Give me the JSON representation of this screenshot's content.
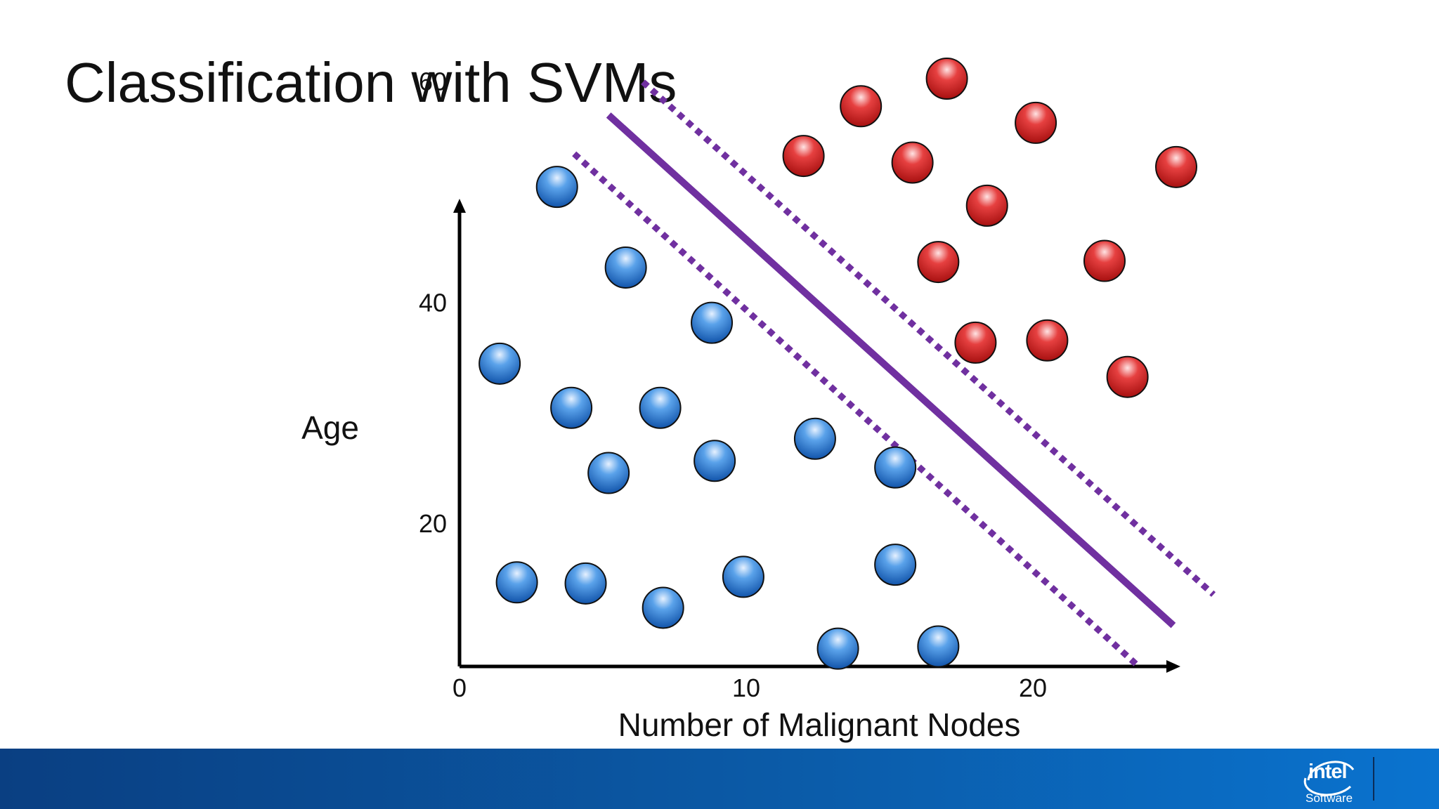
{
  "slide": {
    "title": "Classification with SVMs"
  },
  "chart_data": {
    "type": "scatter",
    "xlabel": "Number of Malignant Nodes",
    "ylabel": "Age",
    "x_ticks": [
      "0",
      "10",
      "20"
    ],
    "y_ticks": [
      "20",
      "40",
      "60"
    ],
    "xlim": [
      0,
      25
    ],
    "ylim": [
      4,
      61
    ],
    "grid": false,
    "series": [
      {
        "color": "#1565c0",
        "points": [
          [
            3.4,
            50.5
          ],
          [
            5.8,
            43.2
          ],
          [
            8.8,
            38.2
          ],
          [
            1.4,
            34.5
          ],
          [
            3.9,
            30.5
          ],
          [
            7.0,
            30.5
          ],
          [
            5.2,
            24.6
          ],
          [
            8.9,
            25.7
          ],
          [
            12.4,
            27.7
          ],
          [
            15.2,
            25.1
          ],
          [
            2.0,
            14.7
          ],
          [
            4.4,
            14.6
          ],
          [
            7.1,
            12.4
          ],
          [
            9.9,
            15.2
          ],
          [
            13.2,
            8.7
          ],
          [
            15.2,
            16.3
          ],
          [
            16.7,
            8.9
          ]
        ]
      },
      {
        "color": "#cc1f1f",
        "points": [
          [
            12.0,
            53.3
          ],
          [
            14.0,
            57.8
          ],
          [
            17.0,
            60.3
          ],
          [
            15.8,
            52.7
          ],
          [
            20.1,
            56.3
          ],
          [
            25.0,
            52.3
          ],
          [
            18.4,
            48.8
          ],
          [
            16.7,
            43.7
          ],
          [
            22.5,
            43.8
          ],
          [
            18.0,
            36.4
          ],
          [
            20.5,
            36.6
          ],
          [
            23.3,
            33.3
          ]
        ]
      }
    ],
    "decision_boundary": {
      "p1": [
        5.2,
        57.0
      ],
      "p2": [
        24.9,
        10.8
      ],
      "color": "#7030a0"
    },
    "margins": [
      {
        "p1": [
          4.0,
          53.5
        ],
        "p2": [
          23.6,
          7.3
        ]
      },
      {
        "p1": [
          6.4,
          60.0
        ],
        "p2": [
          26.3,
          13.6
        ]
      }
    ]
  },
  "footer": {
    "brand": "intel",
    "sub": "Software"
  }
}
